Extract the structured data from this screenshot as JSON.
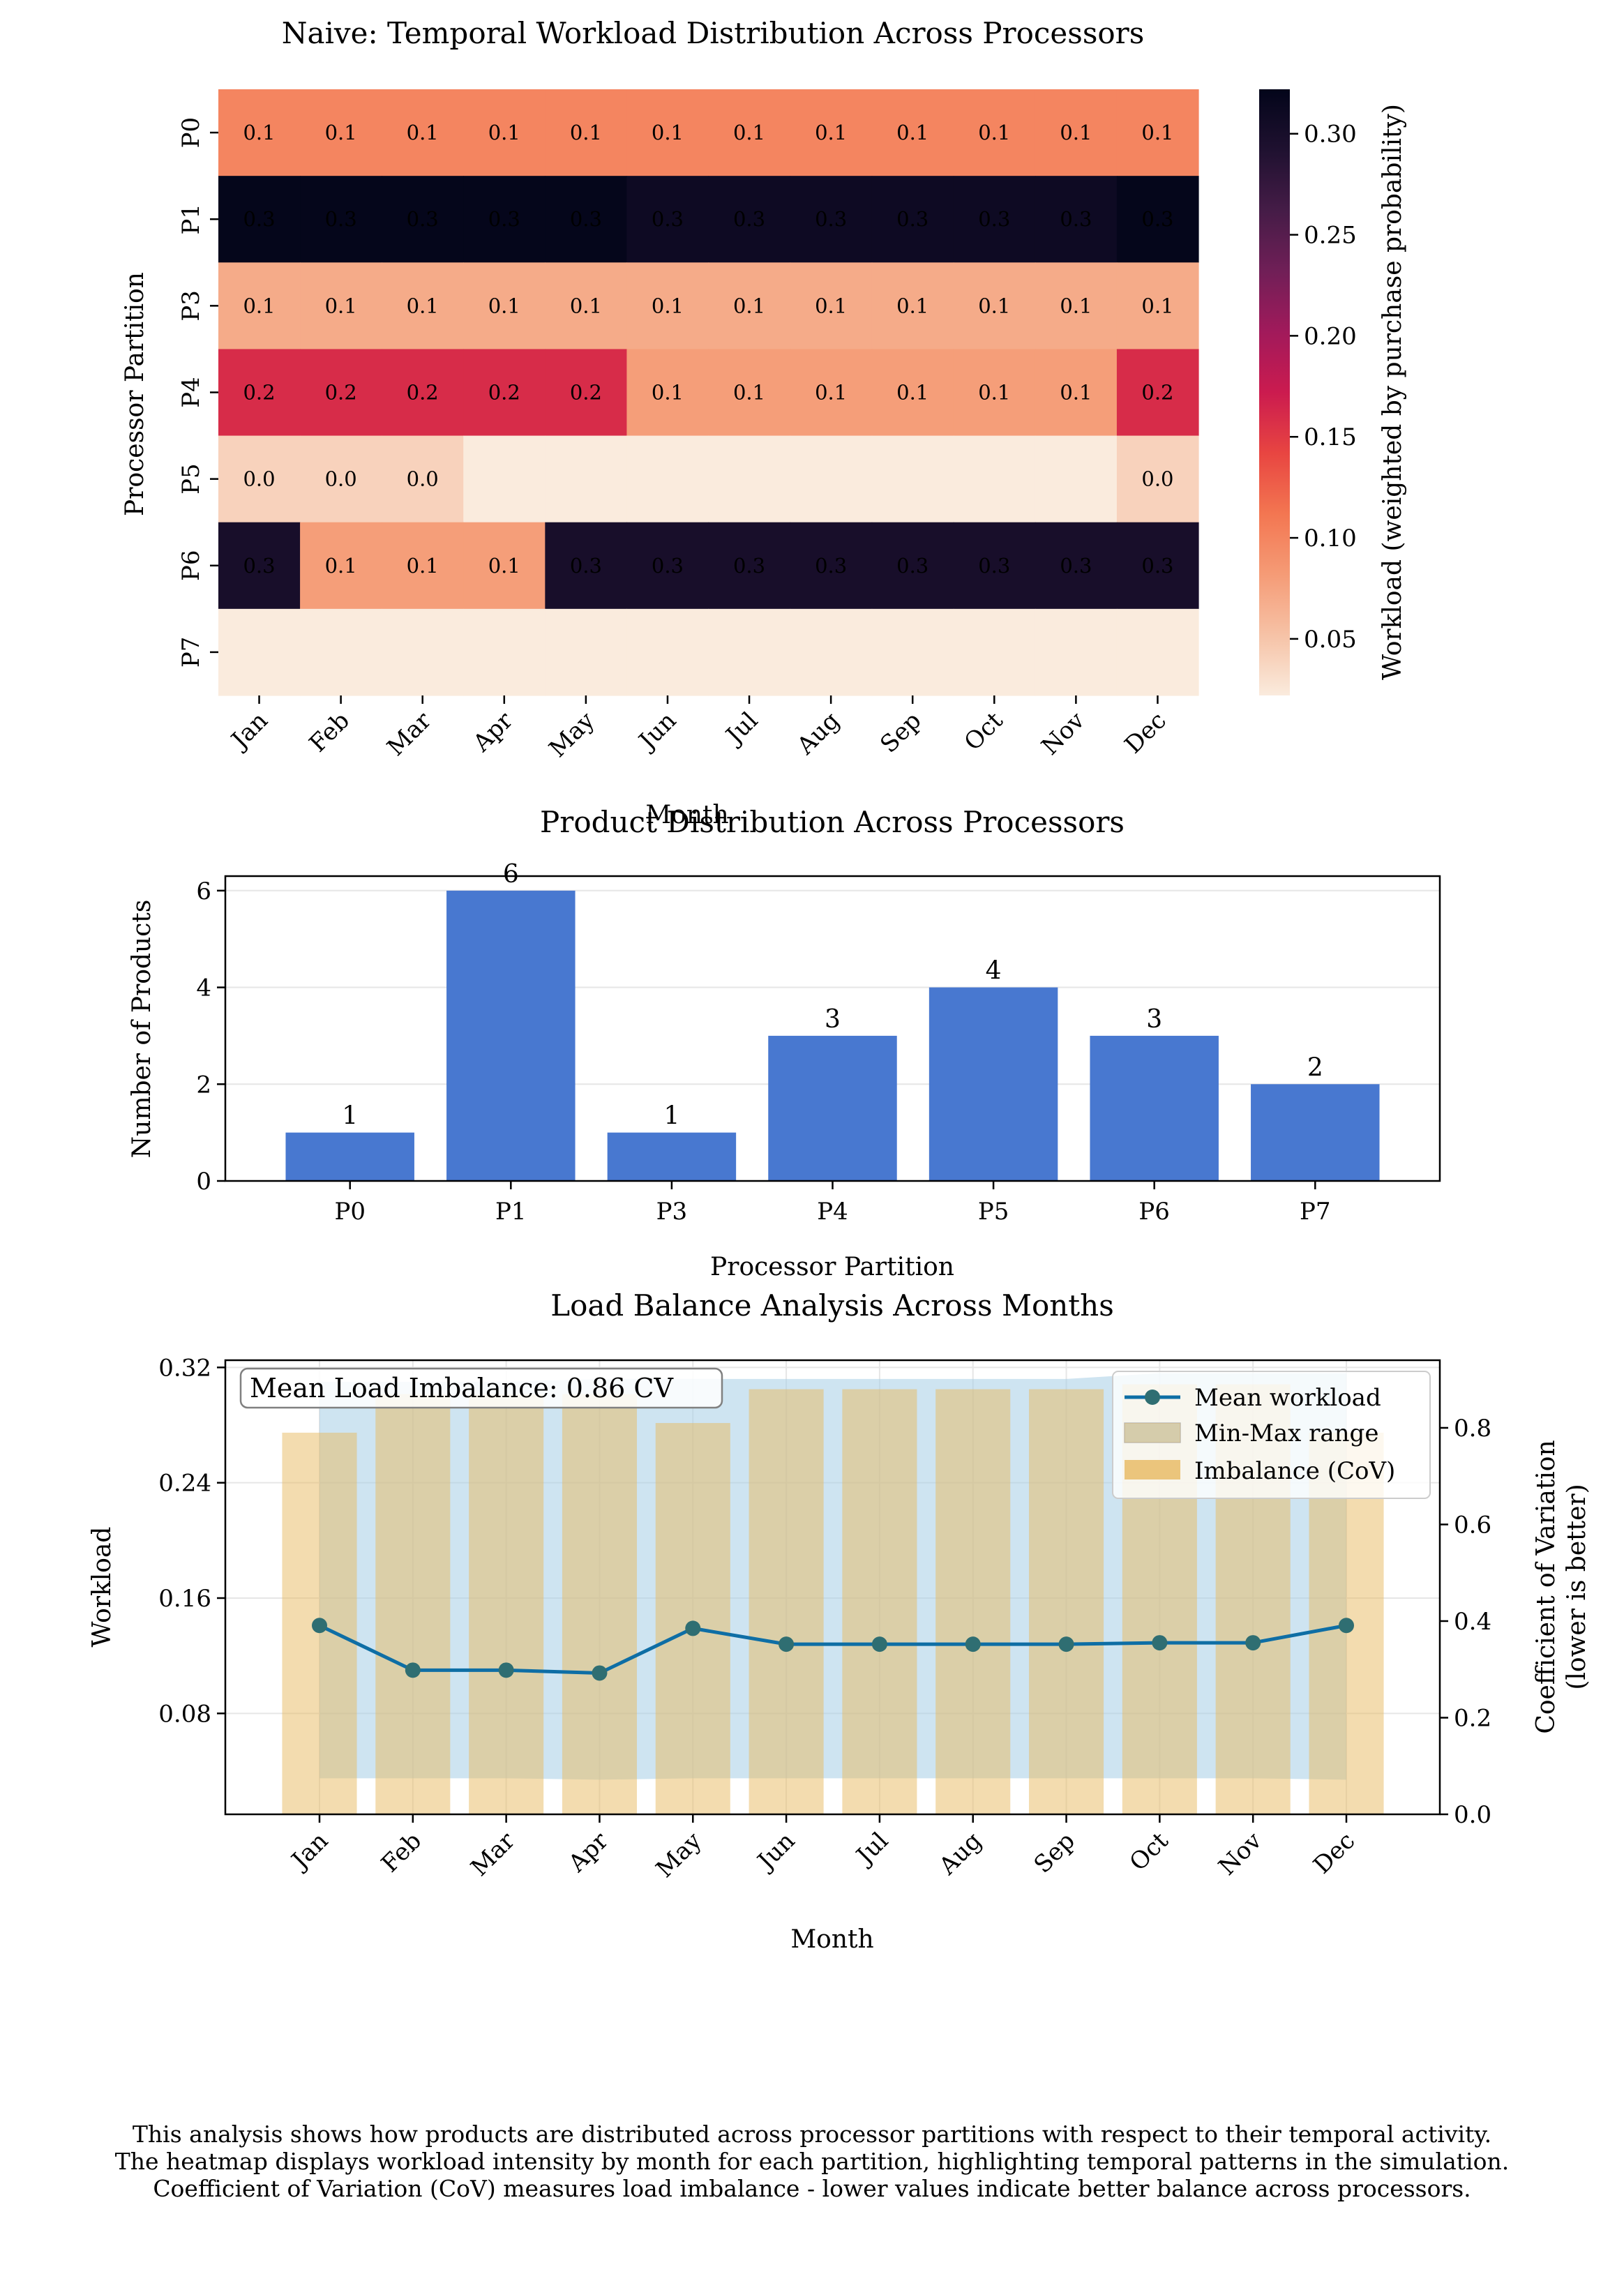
{
  "colors": {
    "bar": "#4878d0",
    "mean_line": "#0e6ea5",
    "mean_marker": "#2f6e72",
    "range_fill": "#a6cde6",
    "cov_bar": "#e7b95f",
    "grid": "#e6e6e6"
  },
  "chart_data": [
    {
      "type": "heatmap",
      "title": "Naive: Temporal Workload Distribution Across Processors",
      "xlabel": "Month",
      "ylabel": "Processor Partition",
      "x_categories": [
        "Jan",
        "Feb",
        "Mar",
        "Apr",
        "May",
        "Jun",
        "Jul",
        "Aug",
        "Sep",
        "Oct",
        "Nov",
        "Dec"
      ],
      "y_categories": [
        "P0",
        "P1",
        "P3",
        "P4",
        "P5",
        "P6",
        "P7"
      ],
      "values": [
        [
          0.1,
          0.1,
          0.1,
          0.1,
          0.1,
          0.1,
          0.1,
          0.1,
          0.1,
          0.1,
          0.1,
          0.1
        ],
        [
          0.32,
          0.32,
          0.32,
          0.32,
          0.32,
          0.31,
          0.31,
          0.31,
          0.31,
          0.31,
          0.31,
          0.32
        ],
        [
          0.07,
          0.07,
          0.07,
          0.07,
          0.07,
          0.07,
          0.07,
          0.07,
          0.07,
          0.07,
          0.07,
          0.07
        ],
        [
          0.16,
          0.16,
          0.16,
          0.16,
          0.16,
          0.08,
          0.08,
          0.08,
          0.08,
          0.08,
          0.08,
          0.16
        ],
        [
          0.04,
          0.04,
          0.04,
          0.02,
          0.02,
          0.02,
          0.02,
          0.02,
          0.02,
          0.02,
          0.02,
          0.04
        ],
        [
          0.3,
          0.08,
          0.08,
          0.08,
          0.3,
          0.3,
          0.3,
          0.3,
          0.3,
          0.3,
          0.3,
          0.3
        ],
        [
          0.02,
          0.02,
          0.02,
          0.02,
          0.02,
          0.02,
          0.02,
          0.02,
          0.02,
          0.02,
          0.02,
          0.02
        ]
      ],
      "annotations": [
        [
          "0.1",
          "0.1",
          "0.1",
          "0.1",
          "0.1",
          "0.1",
          "0.1",
          "0.1",
          "0.1",
          "0.1",
          "0.1",
          "0.1"
        ],
        [
          "0.3",
          "0.3",
          "0.3",
          "0.3",
          "0.3",
          "0.3",
          "0.3",
          "0.3",
          "0.3",
          "0.3",
          "0.3",
          "0.3"
        ],
        [
          "0.1",
          "0.1",
          "0.1",
          "0.1",
          "0.1",
          "0.1",
          "0.1",
          "0.1",
          "0.1",
          "0.1",
          "0.1",
          "0.1"
        ],
        [
          "0.2",
          "0.2",
          "0.2",
          "0.2",
          "0.2",
          "0.1",
          "0.1",
          "0.1",
          "0.1",
          "0.1",
          "0.1",
          "0.2"
        ],
        [
          "0.0",
          "0.0",
          "0.0",
          "",
          "",
          "",
          "",
          "",
          "",
          "",
          "",
          "0.0"
        ],
        [
          "0.3",
          "0.1",
          "0.1",
          "0.1",
          "0.3",
          "0.3",
          "0.3",
          "0.3",
          "0.3",
          "0.3",
          "0.3",
          "0.3"
        ],
        [
          "",
          "",
          "",
          "",
          "",
          "",
          "",
          "",
          "",
          "",
          "",
          ""
        ]
      ],
      "colorbar": {
        "label": "Workload (weighted by purchase probability)",
        "range": [
          0.022,
          0.322
        ],
        "ticks": [
          0.05,
          0.1,
          0.15,
          0.2,
          0.25,
          0.3
        ],
        "tick_labels": [
          "0.05",
          "0.10",
          "0.15",
          "0.20",
          "0.25",
          "0.30"
        ]
      }
    },
    {
      "type": "bar",
      "title": "Product Distribution Across Processors",
      "xlabel": "Processor Partition",
      "ylabel": "Number of Products",
      "categories": [
        "P0",
        "P1",
        "P3",
        "P4",
        "P5",
        "P6",
        "P7"
      ],
      "values": [
        1,
        6,
        1,
        3,
        4,
        3,
        2
      ],
      "value_labels": [
        "1",
        "6",
        "1",
        "3",
        "4",
        "3",
        "2"
      ],
      "ylim": [
        0,
        6.3
      ],
      "yticks": [
        0,
        2,
        4,
        6
      ],
      "ytick_labels": [
        "0",
        "2",
        "4",
        "6"
      ]
    },
    {
      "type": "line",
      "title": "Load Balance Analysis Across Months",
      "xlabel": "Month",
      "ylabel": "Workload",
      "y2label_lines": [
        "Coefficient of Variation",
        "(lower is better)"
      ],
      "categories": [
        "Jan",
        "Feb",
        "Mar",
        "Apr",
        "May",
        "Jun",
        "Jul",
        "Aug",
        "Sep",
        "Oct",
        "Nov",
        "Dec"
      ],
      "ylim": [
        0.01,
        0.325
      ],
      "yticks": [
        0.08,
        0.16,
        0.24,
        0.32
      ],
      "ytick_labels": [
        "0.08",
        "0.16",
        "0.24",
        "0.32"
      ],
      "y2lim": [
        0,
        0.94
      ],
      "y2ticks": [
        0.0,
        0.2,
        0.4,
        0.6,
        0.8
      ],
      "y2tick_labels": [
        "0.0",
        "0.2",
        "0.4",
        "0.6",
        "0.8"
      ],
      "series": [
        {
          "name": "Mean workload",
          "values": [
            0.141,
            0.11,
            0.11,
            0.108,
            0.139,
            0.128,
            0.128,
            0.128,
            0.128,
            0.129,
            0.129,
            0.141
          ]
        },
        {
          "name": "Min-Max range",
          "min": [
            0.035,
            0.035,
            0.035,
            0.034,
            0.035,
            0.035,
            0.035,
            0.035,
            0.035,
            0.035,
            0.035,
            0.034
          ],
          "max": [
            0.31,
            0.31,
            0.31,
            0.312,
            0.312,
            0.312,
            0.312,
            0.312,
            0.312,
            0.316,
            0.316,
            0.316
          ]
        },
        {
          "name": "Imbalance (CoV)",
          "values": [
            0.79,
            0.87,
            0.87,
            0.87,
            0.81,
            0.88,
            0.88,
            0.88,
            0.88,
            0.89,
            0.89,
            0.79
          ]
        }
      ],
      "annotation": "Mean Load Imbalance: 0.86 CV",
      "legend_position": "upper right"
    }
  ],
  "caption": [
    "This analysis shows how products are distributed across processor partitions with respect to their temporal activity.",
    "The heatmap displays workload intensity by month for each partition, highlighting temporal patterns in the simulation.",
    "Coefficient of Variation (CoV) measures load imbalance - lower values indicate better balance across processors."
  ]
}
